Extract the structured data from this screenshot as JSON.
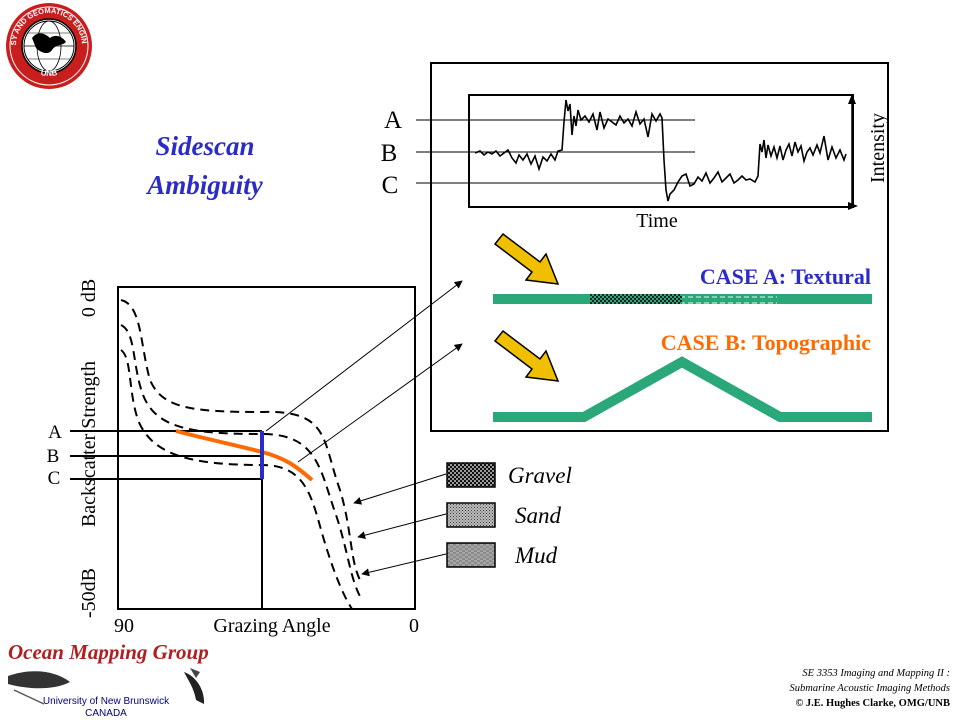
{
  "title": {
    "line1": "Sidescan",
    "line2": "Ambiguity"
  },
  "logo": {
    "text_top": "GEODESY AND GEOMATICS ENGINEERING",
    "text_bottom": "UNB"
  },
  "intensity_plot": {
    "levels": [
      "A",
      "B",
      "C"
    ],
    "x_label": "Time",
    "y_label": "Intensity"
  },
  "case_a": {
    "label": "CASE A: Textural",
    "color": "#2b2bc8"
  },
  "case_b": {
    "label": "CASE B: Topographic",
    "color": "#ff6a00"
  },
  "backscatter_plot": {
    "y_label": "Backscatter Strength",
    "y_top": "0 dB",
    "y_bottom": "-50dB",
    "x_left": "90",
    "x_label": "Grazing Angle",
    "x_right": "0",
    "levels": [
      "A",
      "B",
      "C"
    ]
  },
  "legend": {
    "items": [
      "Gravel",
      "Sand",
      "Mud"
    ]
  },
  "branding": {
    "group": "Ocean Mapping Group",
    "university": "University of New Brunswick",
    "country": "CANADA"
  },
  "footer": {
    "course_line1": "SE 3353 Imaging and Mapping II :",
    "course_line2": "Submarine Acoustic Imaging Methods",
    "copyright": "© J.E. Hughes Clarke, OMG/UNB"
  },
  "colors": {
    "title": "#2b2bc8",
    "seafloor": "#2aa87a",
    "arrow": "#f0c000",
    "group_text": "#b02020"
  }
}
